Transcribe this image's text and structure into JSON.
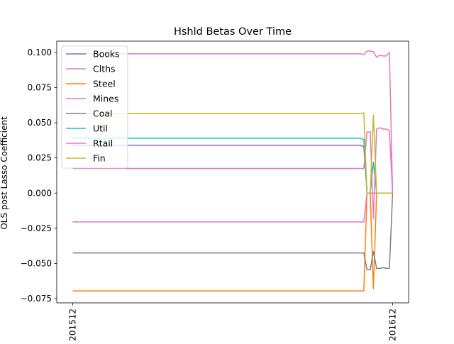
{
  "chart_data": {
    "type": "line",
    "title": "Hshld Betas Over Time",
    "xlabel": "",
    "ylabel": "OLS post Lasso Coefficient",
    "x_ticks": [
      "201512",
      "201612"
    ],
    "x_tick_index": [
      0,
      100
    ],
    "x_range": [
      -5,
      105
    ],
    "ylim": [
      -0.078,
      0.108
    ],
    "y_ticks": [
      -0.075,
      -0.05,
      -0.025,
      0.0,
      0.025,
      0.05,
      0.075,
      0.1
    ],
    "y_tick_labels": [
      "−0.075",
      "−0.050",
      "−0.025",
      "0.000",
      "0.025",
      "0.050",
      "0.075",
      "0.100"
    ],
    "grid": false,
    "legend_position": "top-left",
    "legend": [
      "Books",
      "Clths",
      "Steel",
      "Mines",
      "Coal",
      "Util",
      "Rtail",
      "Fin"
    ],
    "series": [
      {
        "name": "Books",
        "color": "#9467bd",
        "points": [
          [
            0,
            0.034
          ],
          [
            90,
            0.034
          ],
          [
            91,
            0.033
          ],
          [
            92,
            0.0
          ],
          [
            93,
            0.0
          ],
          [
            94,
            0.0
          ],
          [
            95,
            0.0
          ],
          [
            96,
            0.0
          ],
          [
            97,
            0.0
          ],
          [
            98,
            0.0
          ],
          [
            99,
            0.0
          ],
          [
            100,
            0.0
          ]
        ]
      },
      {
        "name": "Clths",
        "color": "#e377c2",
        "points": [
          [
            0,
            0.099
          ],
          [
            90,
            0.099
          ],
          [
            91,
            0.0985
          ],
          [
            92,
            0.101
          ],
          [
            93,
            0.101
          ],
          [
            94,
            0.1005
          ],
          [
            95,
            0.0965
          ],
          [
            96,
            0.098
          ],
          [
            97,
            0.0975
          ],
          [
            98,
            0.0975
          ],
          [
            99,
            0.1
          ],
          [
            100,
            0.0
          ]
        ]
      },
      {
        "name": "Steel",
        "color": "#ff7f0e",
        "points": [
          [
            0,
            -0.0695
          ],
          [
            90,
            -0.0695
          ],
          [
            91,
            -0.0695
          ],
          [
            92,
            0.0
          ],
          [
            93,
            0.0
          ],
          [
            94,
            -0.068
          ],
          [
            95,
            0.0
          ],
          [
            96,
            0.0
          ],
          [
            97,
            0.0
          ],
          [
            98,
            0.0
          ],
          [
            99,
            0.0
          ],
          [
            100,
            0.0
          ]
        ]
      },
      {
        "name": "Mines",
        "color": "#e377c2",
        "points": [
          [
            0,
            -0.0205
          ],
          [
            90,
            -0.0205
          ],
          [
            91,
            -0.0205
          ],
          [
            92,
            0.0
          ],
          [
            93,
            0.0
          ],
          [
            94,
            0.0
          ],
          [
            95,
            0.0
          ],
          [
            96,
            0.0
          ],
          [
            97,
            0.0
          ],
          [
            98,
            0.0
          ],
          [
            99,
            0.0
          ],
          [
            100,
            0.0
          ]
        ]
      },
      {
        "name": "Coal",
        "color": "#7f7f7f",
        "points": [
          [
            0,
            -0.0425
          ],
          [
            90,
            -0.0425
          ],
          [
            91,
            -0.0425
          ],
          [
            92,
            -0.0545
          ],
          [
            93,
            -0.0545
          ],
          [
            94,
            -0.0415
          ],
          [
            95,
            -0.0535
          ],
          [
            96,
            -0.0535
          ],
          [
            97,
            -0.053
          ],
          [
            98,
            -0.0535
          ],
          [
            99,
            -0.0535
          ],
          [
            100,
            0.0
          ]
        ]
      },
      {
        "name": "Util",
        "color": "#17becf",
        "points": [
          [
            0,
            0.039
          ],
          [
            90,
            0.039
          ],
          [
            91,
            0.038
          ],
          [
            92,
            0.0
          ],
          [
            93,
            0.0
          ],
          [
            94,
            0.022
          ],
          [
            95,
            0.0
          ],
          [
            96,
            0.0
          ],
          [
            97,
            0.0
          ],
          [
            98,
            0.0
          ],
          [
            99,
            0.0
          ],
          [
            100,
            0.0
          ]
        ]
      },
      {
        "name": "Rtail",
        "color": "#e377c2",
        "points": [
          [
            0,
            0.0175
          ],
          [
            90,
            0.0175
          ],
          [
            91,
            0.0175
          ],
          [
            92,
            0.0435
          ],
          [
            93,
            0.0435
          ],
          [
            94,
            -0.018
          ],
          [
            95,
            0.0455
          ],
          [
            96,
            0.0465
          ],
          [
            97,
            0.0455
          ],
          [
            98,
            0.0455
          ],
          [
            99,
            0.0445
          ],
          [
            100,
            0.0
          ]
        ]
      },
      {
        "name": "Fin",
        "color": "#bcbd22",
        "points": [
          [
            0,
            0.0565
          ],
          [
            90,
            0.0565
          ],
          [
            91,
            0.057
          ],
          [
            92,
            0.0
          ],
          [
            93,
            0.0
          ],
          [
            94,
            0.0555
          ],
          [
            95,
            0.0
          ],
          [
            96,
            0.0
          ],
          [
            97,
            0.0
          ],
          [
            98,
            0.0
          ],
          [
            99,
            0.0
          ],
          [
            100,
            0.0
          ]
        ]
      }
    ]
  }
}
